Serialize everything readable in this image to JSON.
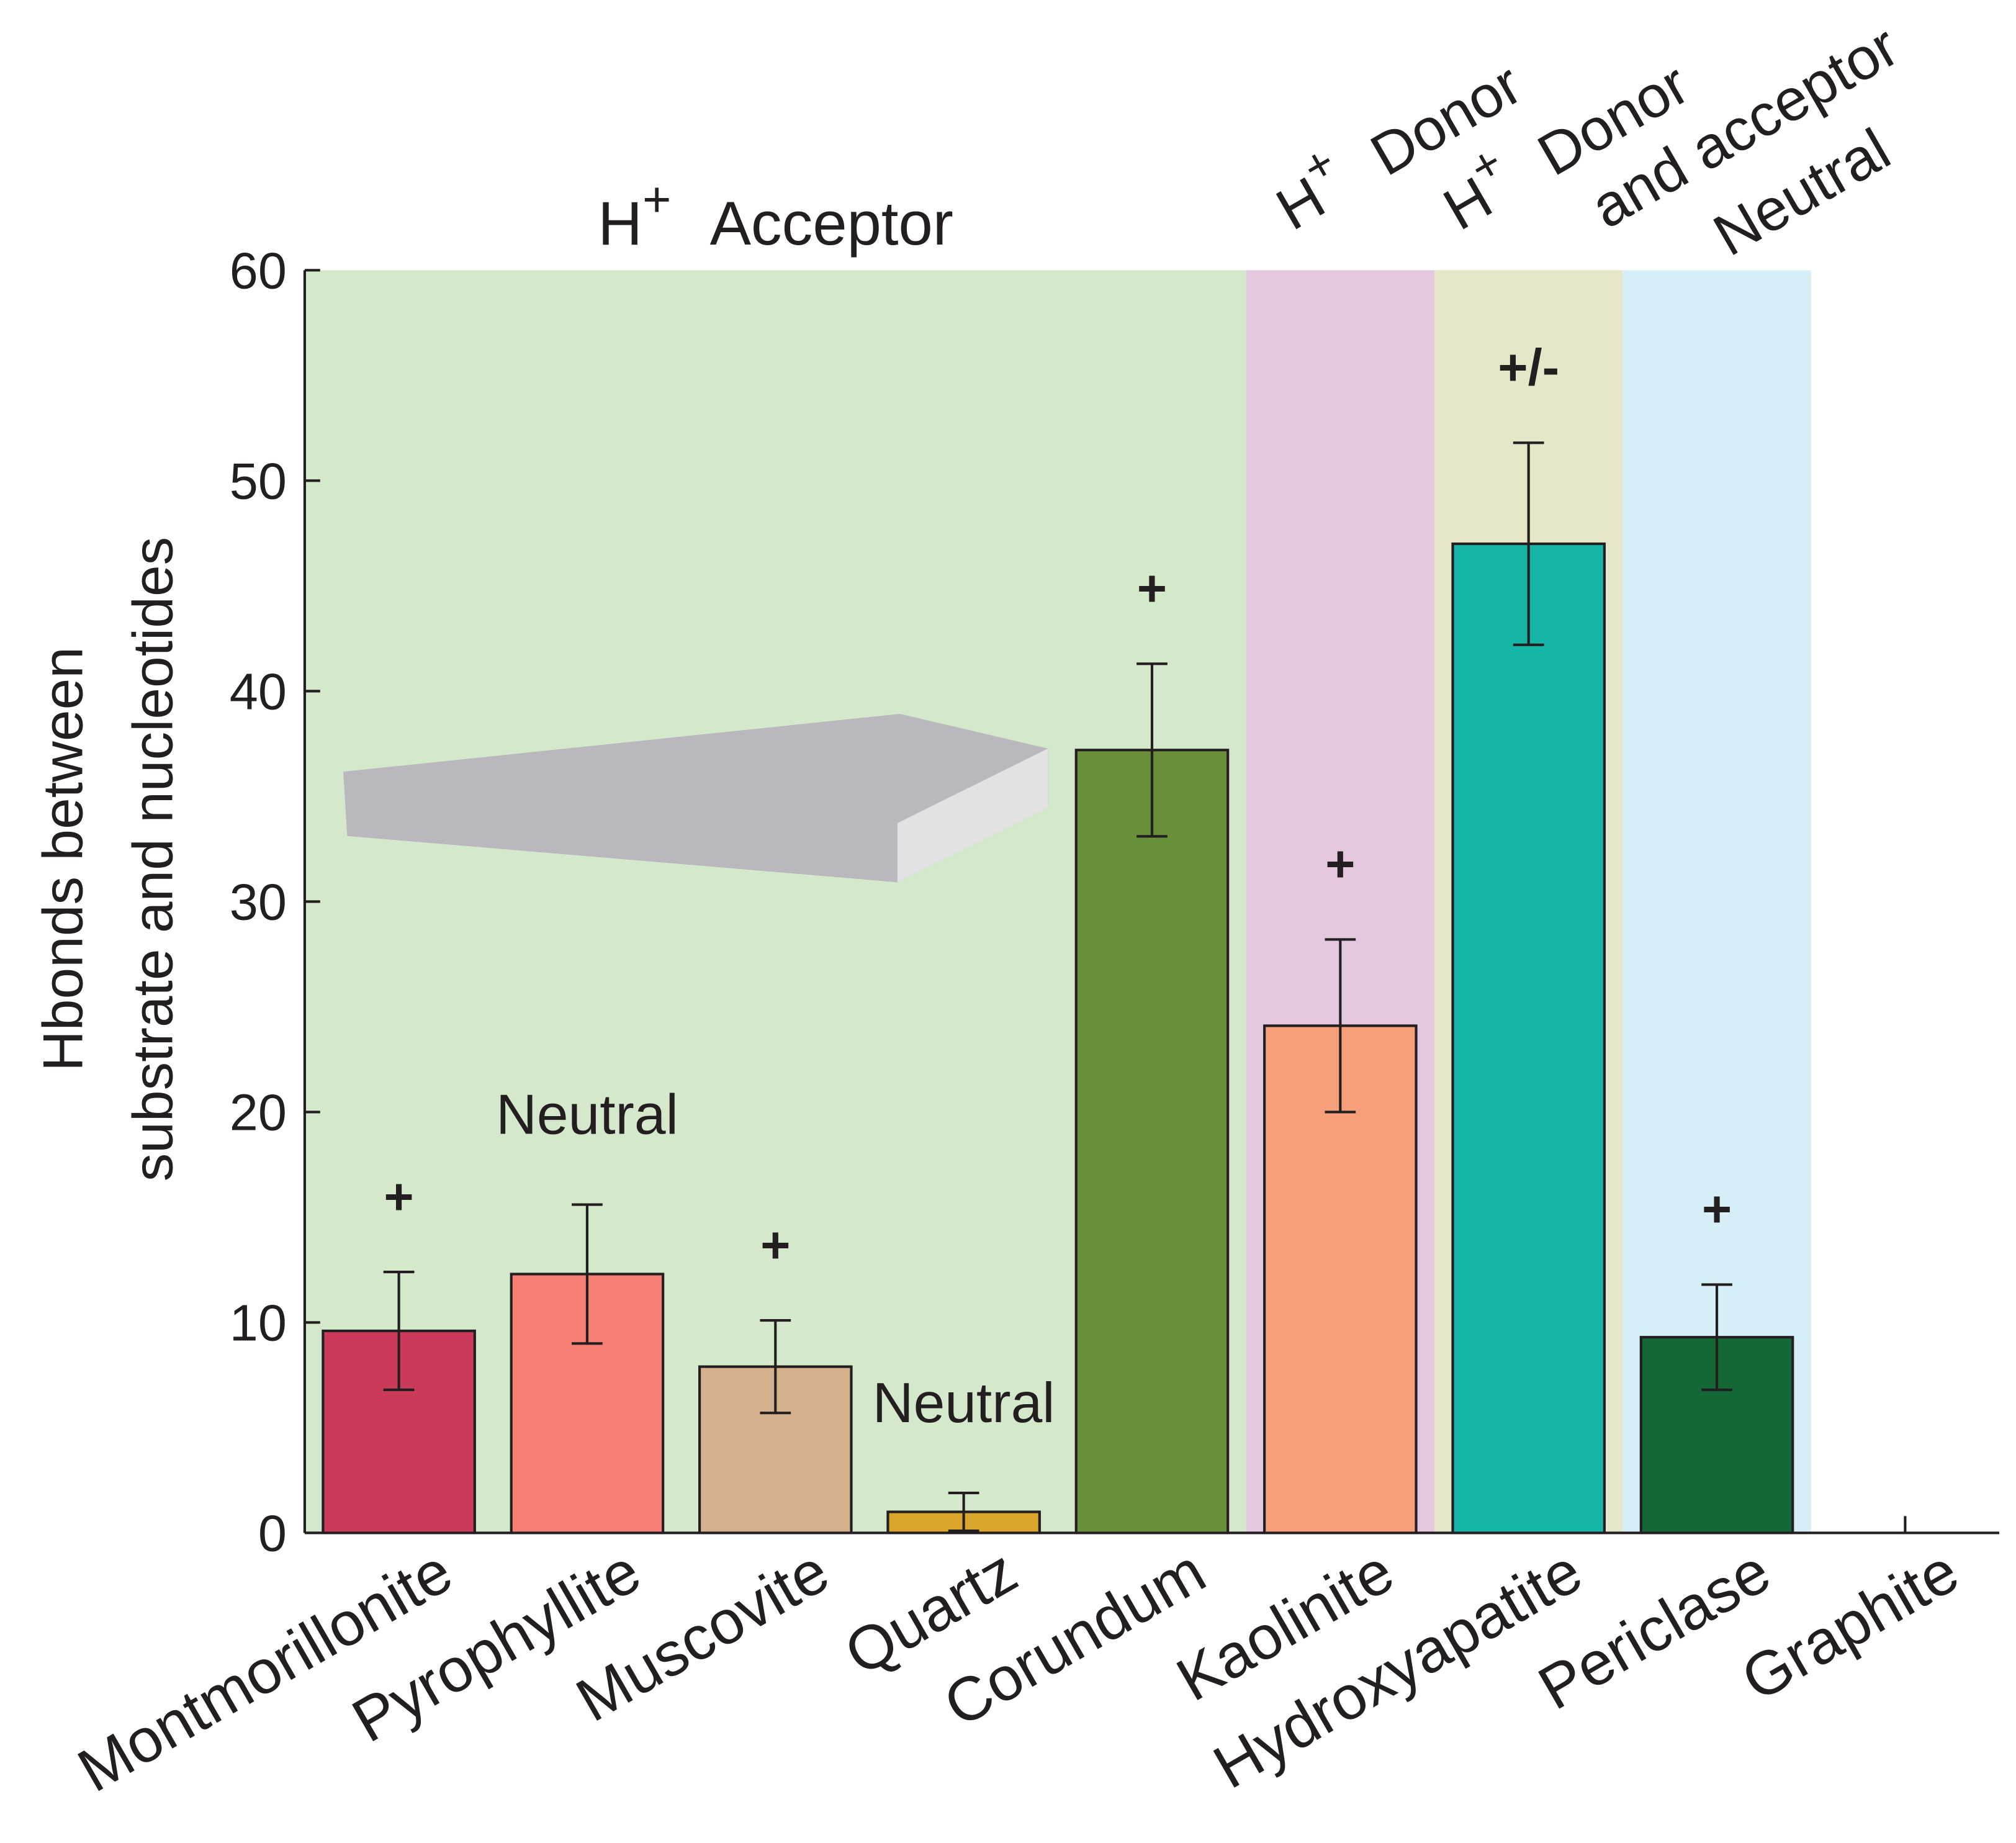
{
  "chart_data": {
    "type": "bar",
    "y_label": [
      "Hbonds between",
      "substrate and nucleotides"
    ],
    "categories": [
      "Montmorillonite",
      "Pyrophyllite",
      "Muscovite",
      "Quartz",
      "Corundum",
      "Kaolinite",
      "Hydroxyapatite",
      "Periclase",
      "Graphite"
    ],
    "values": [
      9.6,
      12.3,
      7.9,
      1.0,
      37.2,
      24.1,
      47.0,
      9.3,
      0
    ],
    "errors": [
      2.8,
      3.3,
      2.2,
      0.9,
      4.1,
      4.1,
      4.8,
      2.5,
      0.8
    ],
    "colors": [
      "#cc3a5a",
      "#f47f72",
      "#d4b08c",
      "#d9a52a",
      "#6a8f3a",
      "#f5a07a",
      "#17b5a8",
      "#146837",
      null
    ],
    "bar_labels": [
      "+",
      "Neutral",
      "+",
      "Neutral",
      "+",
      "+",
      "+/-",
      "+",
      null
    ],
    "regions": [
      {
        "from": "Montmorillonite",
        "to": "Corundum",
        "color": "#d4e8cc",
        "text_color": "#5ab94a",
        "base": "H",
        "sup": "+",
        "text": [
          "Acceptor"
        ]
      },
      {
        "from": "Kaolinite",
        "to": "Kaolinite",
        "color": "#e3c8e0",
        "text_color": "#a3308f",
        "base": "H",
        "sup": "+",
        "text": [
          "Donor"
        ]
      },
      {
        "from": "Hydroxyapatite",
        "to": "Hydroxyapatite",
        "color": "#e6e6c8",
        "text_color": "#a0a43c",
        "base": "H",
        "sup": "+",
        "text": [
          "Donor",
          "and acceptor"
        ]
      },
      {
        "from": "Periclase",
        "to": "Periclase",
        "color": "#d6eef6",
        "text_color": "#5cc6e0",
        "base": null,
        "sup": null,
        "text": [
          "Neutral"
        ]
      }
    ],
    "ylim": [
      0,
      60
    ],
    "yticks": [
      0,
      10,
      20,
      30,
      40,
      50,
      60
    ]
  }
}
